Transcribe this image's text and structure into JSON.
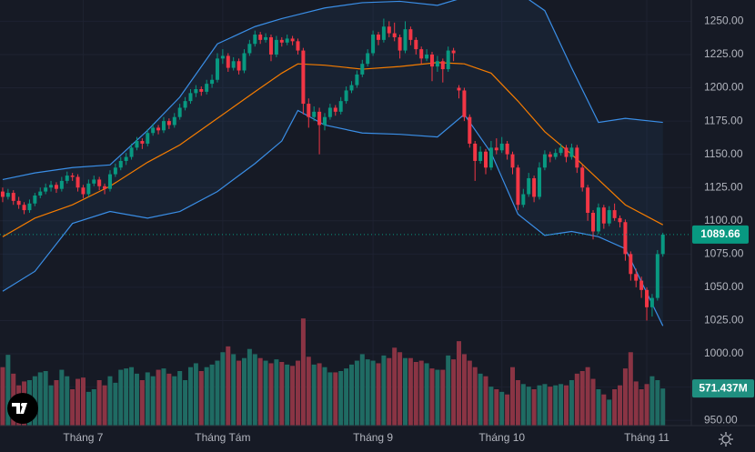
{
  "chart_data": {
    "type": "candlestick",
    "ylim": [
      946,
      1266
    ],
    "yticks": [
      {
        "value": 950,
        "label": "950.00"
      },
      {
        "value": 975,
        "label": "975.00"
      },
      {
        "value": 1000,
        "label": "1000.00"
      },
      {
        "value": 1025,
        "label": "1025.00"
      },
      {
        "value": 1050,
        "label": "1050.00"
      },
      {
        "value": 1075,
        "label": "1075.00"
      },
      {
        "value": 1100,
        "label": "1100.00"
      },
      {
        "value": 1125,
        "label": "1125.00"
      },
      {
        "value": 1150,
        "label": "1150.00"
      },
      {
        "value": 1175,
        "label": "1175.00"
      },
      {
        "value": 1200,
        "label": "1200.00"
      },
      {
        "value": 1225,
        "label": "1225.00"
      },
      {
        "value": 1250,
        "label": "1250.00"
      }
    ],
    "xlim": [
      -0.5,
      128.3
    ],
    "xticks": [
      {
        "value": 15,
        "label": "Tháng 7"
      },
      {
        "value": 41,
        "label": "Tháng Tám"
      },
      {
        "value": 69,
        "label": "Tháng 9"
      },
      {
        "value": 93,
        "label": "Tháng 10"
      },
      {
        "value": 120,
        "label": "Tháng 11"
      }
    ],
    "grid": true,
    "up_color": "#089981",
    "down_color": "#f23645",
    "band_color": "#3a8ee6",
    "middle_color": "#f57c00",
    "volume_lim": [
      0,
      2800
    ],
    "volume_up_color": "#1f6b63",
    "volume_down_color": "#8a3444",
    "volume_value_label": "571.437M",
    "ohlc": [
      [
        1122,
        1125,
        1114,
        1118
      ],
      [
        1118,
        1124,
        1116,
        1121
      ],
      [
        1121,
        1123,
        1112,
        1115
      ],
      [
        1115,
        1118,
        1109,
        1112
      ],
      [
        1112,
        1114,
        1105,
        1108
      ],
      [
        1108,
        1116,
        1106,
        1113
      ],
      [
        1113,
        1121,
        1111,
        1119
      ],
      [
        1119,
        1125,
        1117,
        1122
      ],
      [
        1122,
        1128,
        1120,
        1125
      ],
      [
        1125,
        1130,
        1122,
        1127
      ],
      [
        1127,
        1129,
        1121,
        1124
      ],
      [
        1124,
        1133,
        1122,
        1130
      ],
      [
        1130,
        1137,
        1128,
        1134
      ],
      [
        1134,
        1136,
        1130,
        1133
      ],
      [
        1133,
        1135,
        1122,
        1125
      ],
      [
        1125,
        1127,
        1117,
        1120
      ],
      [
        1120,
        1131,
        1118,
        1128
      ],
      [
        1128,
        1134,
        1126,
        1131
      ],
      [
        1131,
        1133,
        1123,
        1126
      ],
      [
        1126,
        1128,
        1120,
        1124
      ],
      [
        1124,
        1138,
        1122,
        1135
      ],
      [
        1135,
        1143,
        1133,
        1140
      ],
      [
        1140,
        1148,
        1138,
        1145
      ],
      [
        1145,
        1151,
        1142,
        1148
      ],
      [
        1148,
        1158,
        1146,
        1155
      ],
      [
        1155,
        1163,
        1153,
        1160
      ],
      [
        1160,
        1162,
        1154,
        1158
      ],
      [
        1158,
        1169,
        1156,
        1166
      ],
      [
        1166,
        1173,
        1164,
        1170
      ],
      [
        1170,
        1172,
        1165,
        1168
      ],
      [
        1168,
        1178,
        1166,
        1175
      ],
      [
        1175,
        1177,
        1169,
        1172
      ],
      [
        1172,
        1181,
        1170,
        1178
      ],
      [
        1178,
        1188,
        1176,
        1185
      ],
      [
        1185,
        1193,
        1183,
        1190
      ],
      [
        1190,
        1199,
        1188,
        1196
      ],
      [
        1196,
        1202,
        1193,
        1199
      ],
      [
        1199,
        1201,
        1194,
        1197
      ],
      [
        1197,
        1206,
        1195,
        1203
      ],
      [
        1203,
        1210,
        1200,
        1206
      ],
      [
        1206,
        1226,
        1204,
        1222
      ],
      [
        1222,
        1229,
        1218,
        1224
      ],
      [
        1224,
        1226,
        1212,
        1215
      ],
      [
        1215,
        1223,
        1213,
        1220
      ],
      [
        1220,
        1222,
        1210,
        1213
      ],
      [
        1213,
        1229,
        1211,
        1226
      ],
      [
        1226,
        1236,
        1224,
        1233
      ],
      [
        1233,
        1243,
        1231,
        1240
      ],
      [
        1240,
        1242,
        1233,
        1236
      ],
      [
        1236,
        1241,
        1234,
        1238
      ],
      [
        1238,
        1240,
        1220,
        1225
      ],
      [
        1225,
        1239,
        1223,
        1236
      ],
      [
        1236,
        1238,
        1231,
        1234
      ],
      [
        1234,
        1240,
        1232,
        1237
      ],
      [
        1237,
        1239,
        1232,
        1235
      ],
      [
        1235,
        1237,
        1225,
        1228
      ],
      [
        1228,
        1230,
        1180,
        1188
      ],
      [
        1188,
        1192,
        1170,
        1178
      ],
      [
        1178,
        1186,
        1175,
        1182
      ],
      [
        1182,
        1185,
        1150,
        1172
      ],
      [
        1172,
        1181,
        1168,
        1178
      ],
      [
        1178,
        1188,
        1176,
        1185
      ],
      [
        1185,
        1187,
        1179,
        1182
      ],
      [
        1182,
        1193,
        1180,
        1190
      ],
      [
        1190,
        1201,
        1188,
        1198
      ],
      [
        1198,
        1205,
        1196,
        1202
      ],
      [
        1202,
        1213,
        1200,
        1210
      ],
      [
        1210,
        1221,
        1208,
        1218
      ],
      [
        1218,
        1229,
        1216,
        1226
      ],
      [
        1226,
        1243,
        1224,
        1240
      ],
      [
        1240,
        1242,
        1232,
        1236
      ],
      [
        1236,
        1252,
        1234,
        1246
      ],
      [
        1246,
        1250,
        1238,
        1241
      ],
      [
        1241,
        1249,
        1235,
        1238
      ],
      [
        1238,
        1240,
        1222,
        1228
      ],
      [
        1228,
        1250,
        1226,
        1244
      ],
      [
        1244,
        1246,
        1232,
        1236
      ],
      [
        1236,
        1238,
        1225,
        1229
      ],
      [
        1229,
        1231,
        1218,
        1222
      ],
      [
        1222,
        1229,
        1220,
        1225
      ],
      [
        1225,
        1227,
        1205,
        1216
      ],
      [
        1216,
        1224,
        1212,
        1220
      ],
      [
        1220,
        1222,
        1204,
        1214
      ],
      [
        1214,
        1231,
        1212,
        1228
      ],
      [
        1228,
        1230,
        1220,
        1226
      ],
      [
        1200,
        1202,
        1192,
        1198
      ],
      [
        1198,
        1200,
        1175,
        1178
      ],
      [
        1178,
        1180,
        1155,
        1158
      ],
      [
        1158,
        1160,
        1130,
        1145
      ],
      [
        1145,
        1156,
        1143,
        1152
      ],
      [
        1152,
        1154,
        1135,
        1140
      ],
      [
        1140,
        1160,
        1138,
        1155
      ],
      [
        1155,
        1162,
        1150,
        1153
      ],
      [
        1153,
        1163,
        1151,
        1158
      ],
      [
        1158,
        1160,
        1146,
        1150
      ],
      [
        1150,
        1152,
        1135,
        1140
      ],
      [
        1140,
        1142,
        1108,
        1112
      ],
      [
        1112,
        1124,
        1110,
        1120
      ],
      [
        1120,
        1136,
        1118,
        1132
      ],
      [
        1132,
        1134,
        1114,
        1118
      ],
      [
        1118,
        1144,
        1116,
        1140
      ],
      [
        1140,
        1153,
        1138,
        1150
      ],
      [
        1150,
        1152,
        1144,
        1148
      ],
      [
        1148,
        1154,
        1146,
        1151
      ],
      [
        1151,
        1158,
        1149,
        1155
      ],
      [
        1155,
        1157,
        1144,
        1148
      ],
      [
        1148,
        1158,
        1146,
        1155
      ],
      [
        1155,
        1157,
        1136,
        1140
      ],
      [
        1140,
        1142,
        1122,
        1125
      ],
      [
        1125,
        1127,
        1100,
        1106
      ],
      [
        1106,
        1108,
        1086,
        1092
      ],
      [
        1092,
        1113,
        1090,
        1110
      ],
      [
        1110,
        1112,
        1094,
        1098
      ],
      [
        1098,
        1111,
        1096,
        1108
      ],
      [
        1108,
        1113,
        1100,
        1102
      ],
      [
        1102,
        1104,
        1095,
        1099
      ],
      [
        1099,
        1101,
        1070,
        1075
      ],
      [
        1075,
        1077,
        1055,
        1060
      ],
      [
        1060,
        1064,
        1050,
        1055
      ],
      [
        1055,
        1058,
        1042,
        1048
      ],
      [
        1048,
        1050,
        1025,
        1035
      ],
      [
        1035,
        1045,
        1028,
        1042
      ],
      [
        1042,
        1078,
        1040,
        1075
      ],
      [
        1075,
        1091,
        1073,
        1089.66
      ]
    ],
    "volume": [
      900,
      1090,
      800,
      620,
      680,
      700,
      760,
      820,
      840,
      620,
      700,
      860,
      760,
      560,
      720,
      740,
      520,
      560,
      700,
      620,
      760,
      660,
      860,
      880,
      900,
      800,
      700,
      820,
      760,
      860,
      880,
      800,
      760,
      840,
      700,
      900,
      960,
      840,
      900,
      940,
      1000,
      1130,
      1220,
      1100,
      1000,
      1040,
      1180,
      1100,
      1040,
      1000,
      960,
      1020,
      980,
      940,
      920,
      1000,
      1650,
      1060,
      940,
      960,
      900,
      820,
      820,
      840,
      880,
      940,
      1000,
      1100,
      1020,
      1000,
      960,
      1080,
      1040,
      1200,
      1130,
      1040,
      1040,
      980,
      1000,
      960,
      880,
      860,
      860,
      1080,
      1020,
      1300,
      1100,
      1000,
      900,
      800,
      760,
      600,
      560,
      520,
      480,
      900,
      700,
      640,
      600,
      560,
      620,
      640,
      600,
      620,
      640,
      620,
      700,
      800,
      840,
      900,
      720,
      560,
      480,
      400,
      560,
      620,
      880,
      1130,
      680,
      560,
      640,
      760,
      700,
      571.437
    ],
    "bands": {
      "x": [
        0,
        6,
        13,
        20,
        27,
        33,
        40,
        47,
        52,
        55,
        60,
        67,
        74,
        81,
        86,
        91,
        96,
        101,
        106,
        111,
        116,
        123
      ],
      "upper": [
        1131,
        1136,
        1140,
        1142,
        1168,
        1193,
        1233,
        1246,
        1252,
        1255,
        1260,
        1264,
        1265,
        1262,
        1268,
        1276,
        1272,
        1258,
        1215,
        1174,
        1177,
        1174
      ],
      "middle": [
        1088,
        1102,
        1112,
        1126,
        1144,
        1157,
        1177,
        1197,
        1211,
        1218,
        1217,
        1214,
        1216,
        1219,
        1218,
        1211,
        1190,
        1167,
        1150,
        1131,
        1112,
        1097
      ],
      "lower": [
        1047,
        1062,
        1098,
        1107,
        1102,
        1107,
        1122,
        1143,
        1160,
        1183,
        1172,
        1166,
        1165,
        1163,
        1180,
        1151,
        1105,
        1089,
        1092,
        1088,
        1079,
        1021
      ]
    }
  }
}
